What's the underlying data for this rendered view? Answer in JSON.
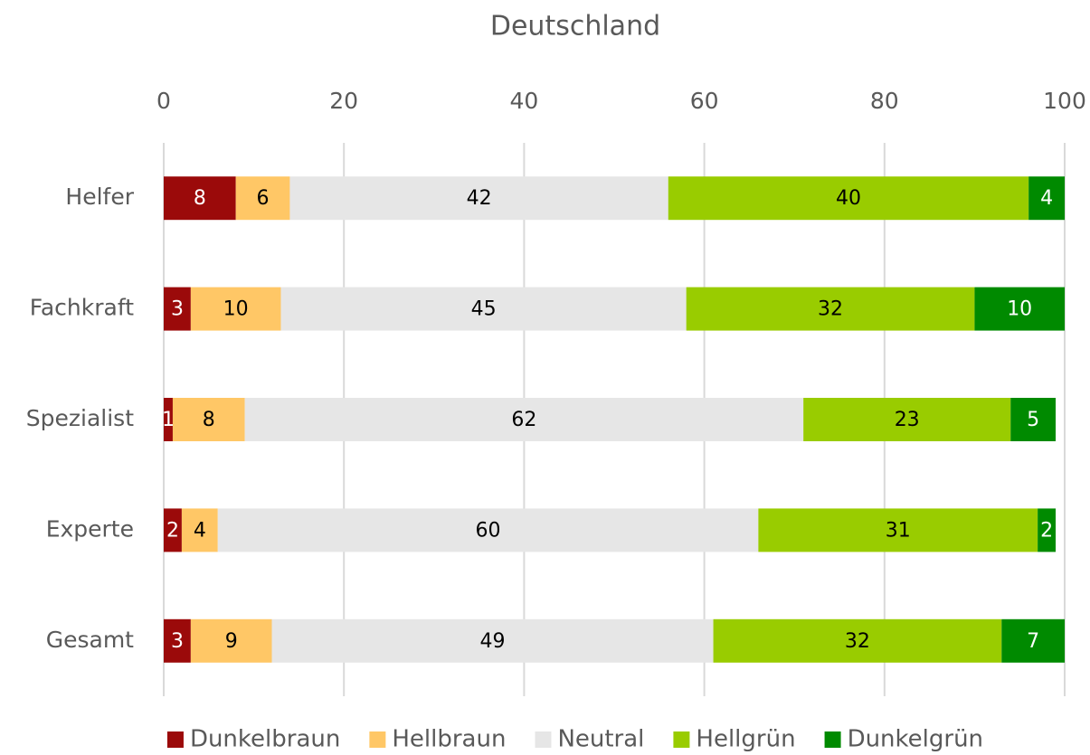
{
  "chart_data": {
    "type": "stacked_barh",
    "title": "Deutschland",
    "categories": [
      "Helfer",
      "Fachkraft",
      "Spezialist",
      "Experte",
      "Gesamt"
    ],
    "series": [
      {
        "name": "Dunkelbraun",
        "color": "#9b0a0a",
        "label_color": "#ffffff",
        "values": [
          8,
          3,
          1,
          2,
          3
        ]
      },
      {
        "name": "Hellbraun",
        "color": "#ffc766",
        "label_color": "#000000",
        "values": [
          6,
          10,
          8,
          4,
          9
        ]
      },
      {
        "name": "Neutral",
        "color": "#e6e6e6",
        "label_color": "#000000",
        "values": [
          42,
          45,
          62,
          60,
          49
        ]
      },
      {
        "name": "Hellgrün",
        "color": "#99cc00",
        "label_color": "#000000",
        "values": [
          40,
          32,
          23,
          31,
          32
        ]
      },
      {
        "name": "Dunkelgrün",
        "color": "#008a00",
        "label_color": "#ffffff",
        "values": [
          4,
          10,
          5,
          2,
          7
        ]
      }
    ],
    "xlim": [
      0,
      100
    ],
    "xticks": [
      0,
      20,
      40,
      60,
      80,
      100
    ],
    "grid": true,
    "legend": "bottom"
  }
}
